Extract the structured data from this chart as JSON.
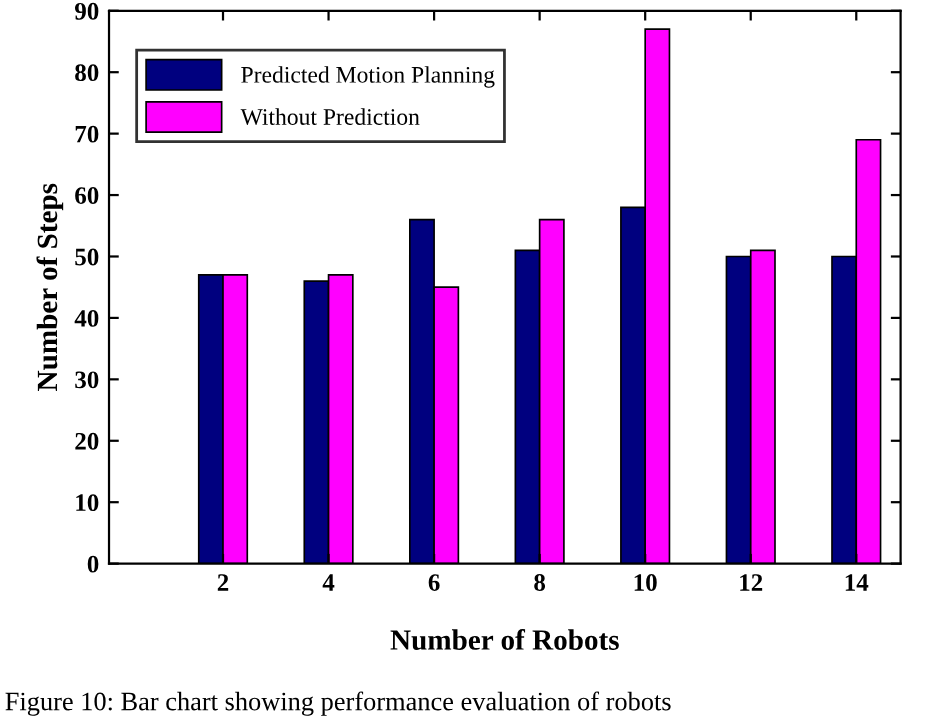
{
  "chart_data": {
    "type": "bar",
    "xlabel": "Number of Robots",
    "ylabel": "Number of Steps",
    "categories": [
      "2",
      "4",
      "6",
      "8",
      "10",
      "12",
      "14"
    ],
    "series": [
      {
        "name": "Predicted Motion Planning",
        "color": "#00007f",
        "values": [
          47,
          46,
          56,
          51,
          58,
          50,
          50
        ]
      },
      {
        "name": "Without Prediction",
        "color": "#ff00ff",
        "values": [
          47,
          47,
          45,
          56,
          87,
          51,
          69
        ]
      }
    ],
    "ylim": [
      0,
      90
    ],
    "yticks": [
      0,
      10,
      20,
      30,
      40,
      50,
      60,
      70,
      80,
      90
    ],
    "grid": false,
    "legend": "top left",
    "annotations": [
      "Figure 10: Bar chart showing performance evaluation of robots"
    ]
  }
}
